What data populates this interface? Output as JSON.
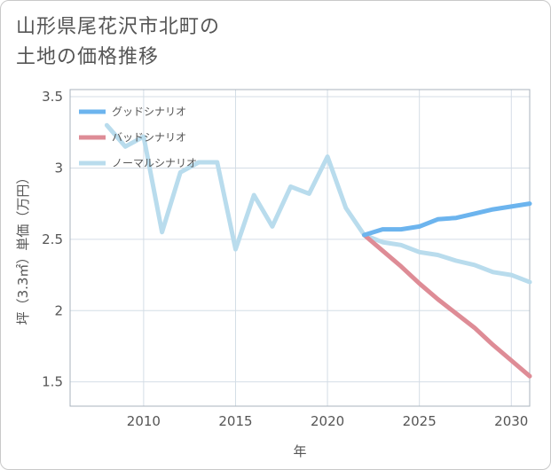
{
  "title_line1": "山形県尾花沢市北町の",
  "title_line2": "土地の価格推移",
  "chart_data": {
    "type": "line",
    "title": "山形県尾花沢市北町の土地の価格推移",
    "xlabel": "年",
    "ylabel": "坪（3.3㎡）単価（万円）",
    "xlim": [
      2006,
      2031
    ],
    "ylim": [
      1.33,
      3.55
    ],
    "xticks": [
      2010,
      2015,
      2020,
      2025,
      2030
    ],
    "yticks": [
      1.5,
      2,
      2.5,
      3,
      3.5
    ],
    "xtick_labels": [
      "2010",
      "2015",
      "2020",
      "2025",
      "2030"
    ],
    "ytick_labels": [
      "1.5",
      "2",
      "2.5",
      "3",
      "3.5"
    ],
    "grid": true,
    "legend_position": "top-left",
    "series": [
      {
        "name": "グッドシナリオ",
        "color": "#6cb4ee",
        "x": [
          2022,
          2023,
          2024,
          2025,
          2026,
          2027,
          2028,
          2029,
          2030,
          2031
        ],
        "y": [
          2.53,
          2.57,
          2.57,
          2.59,
          2.64,
          2.65,
          2.68,
          2.71,
          2.73,
          2.75
        ]
      },
      {
        "name": "バッドシナリオ",
        "color": "#de8c96",
        "x": [
          2022,
          2023,
          2024,
          2025,
          2026,
          2027,
          2028,
          2029,
          2030,
          2031
        ],
        "y": [
          2.53,
          2.42,
          2.31,
          2.19,
          2.08,
          1.98,
          1.88,
          1.76,
          1.65,
          1.54
        ]
      },
      {
        "name": "ノーマルシナリオ",
        "color": "#b9dced",
        "x": [
          2008,
          2009,
          2010,
          2011,
          2012,
          2013,
          2014,
          2015,
          2016,
          2017,
          2018,
          2019,
          2020,
          2021,
          2022,
          2023,
          2024,
          2025,
          2026,
          2027,
          2028,
          2029,
          2030,
          2031
        ],
        "y": [
          3.3,
          3.15,
          3.22,
          2.55,
          2.97,
          3.04,
          3.04,
          2.43,
          2.81,
          2.59,
          2.87,
          2.82,
          3.08,
          2.72,
          2.53,
          2.48,
          2.46,
          2.41,
          2.39,
          2.35,
          2.32,
          2.27,
          2.25,
          2.2
        ]
      }
    ]
  }
}
